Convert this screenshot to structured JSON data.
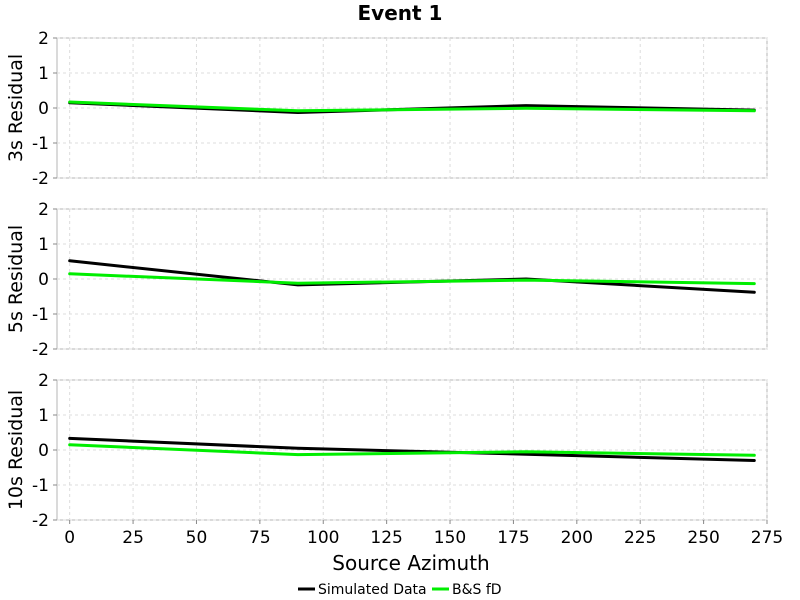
{
  "chart_data": {
    "type": "line",
    "title": "Event 1",
    "xlabel": "Source Azimuth",
    "xlim": [
      -5,
      275
    ],
    "xticks": [
      0,
      25,
      50,
      75,
      100,
      125,
      150,
      175,
      200,
      225,
      250,
      275
    ],
    "ylim": [
      -2,
      2
    ],
    "yticks": [
      -2,
      -1,
      0,
      1,
      2
    ],
    "grid": true,
    "legend_position": "bottom-center",
    "legend": [
      {
        "name": "Simulated Data",
        "color": "#000000"
      },
      {
        "name": "B&S fD",
        "color": "#00ee00"
      }
    ],
    "x": [
      0,
      90,
      180,
      270
    ],
    "panels": [
      {
        "ylabel": "3s Residual",
        "series": [
          {
            "name": "Simulated Data",
            "color": "#000000",
            "values": [
              0.15,
              -0.13,
              0.07,
              -0.06
            ]
          },
          {
            "name": "B&S fD",
            "color": "#00ee00",
            "values": [
              0.17,
              -0.08,
              -0.01,
              -0.08
            ]
          }
        ]
      },
      {
        "ylabel": "5s Residual",
        "series": [
          {
            "name": "Simulated Data",
            "color": "#000000",
            "values": [
              0.52,
              -0.17,
              0.0,
              -0.38
            ]
          },
          {
            "name": "B&S fD",
            "color": "#00ee00",
            "values": [
              0.15,
              -0.12,
              -0.03,
              -0.13
            ]
          }
        ]
      },
      {
        "ylabel": "10s Residual",
        "series": [
          {
            "name": "Simulated Data",
            "color": "#000000",
            "values": [
              0.33,
              0.05,
              -0.12,
              -0.3
            ]
          },
          {
            "name": "B&S fD",
            "color": "#00ee00",
            "values": [
              0.15,
              -0.13,
              -0.05,
              -0.15
            ]
          }
        ]
      }
    ]
  }
}
